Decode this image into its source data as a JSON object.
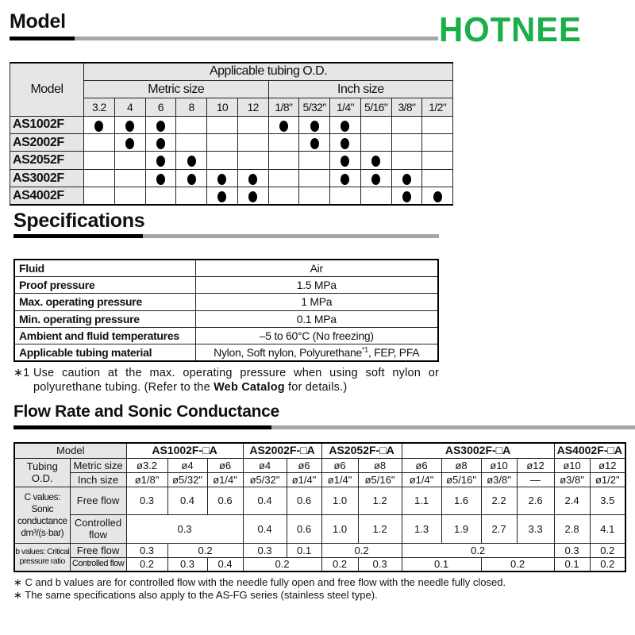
{
  "model_section": {
    "title": "Model"
  },
  "logo": {
    "text": "HOTNEE",
    "color": "#1aaf48"
  },
  "model_table": {
    "header_model": "Model",
    "header_applicable": "Applicable tubing O.D.",
    "header_metric": "Metric size",
    "header_inch": "Inch size",
    "metric_sizes": [
      "3.2",
      "4",
      "6",
      "8",
      "10",
      "12"
    ],
    "inch_sizes": [
      "1/8\"",
      "5/32\"",
      "1/4\"",
      "5/16\"",
      "3/8\"",
      "1/2\""
    ],
    "rows": [
      {
        "model": "AS1002F",
        "metric": [
          1,
          1,
          1,
          0,
          0,
          0
        ],
        "inch": [
          1,
          1,
          1,
          0,
          0,
          0
        ]
      },
      {
        "model": "AS2002F",
        "metric": [
          0,
          1,
          1,
          0,
          0,
          0
        ],
        "inch": [
          0,
          1,
          1,
          0,
          0,
          0
        ]
      },
      {
        "model": "AS2052F",
        "metric": [
          0,
          0,
          1,
          1,
          0,
          0
        ],
        "inch": [
          0,
          0,
          1,
          1,
          0,
          0
        ]
      },
      {
        "model": "AS3002F",
        "metric": [
          0,
          0,
          1,
          1,
          1,
          1
        ],
        "inch": [
          0,
          0,
          1,
          1,
          1,
          0
        ]
      },
      {
        "model": "AS4002F",
        "metric": [
          0,
          0,
          0,
          0,
          1,
          1
        ],
        "inch": [
          0,
          0,
          0,
          0,
          1,
          1
        ]
      }
    ]
  },
  "spec_section": {
    "title": "Specifications"
  },
  "spec_table": [
    {
      "k": "Fluid",
      "v": "Air"
    },
    {
      "k": "Proof pressure",
      "v": "1.5 MPa"
    },
    {
      "k": "Max. operating pressure",
      "v": "1 MPa"
    },
    {
      "k": "Min. operating pressure",
      "v": "0.1 MPa"
    },
    {
      "k": "Ambient and fluid temperatures",
      "v": "–5 to 60°C (No freezing)"
    },
    {
      "k": "Applicable tubing material",
      "v": "Nylon, Soft nylon, Polyurethane",
      "sup": "*1",
      "v2": ", FEP, PFA"
    }
  ],
  "spec_note": {
    "mark": "∗1",
    "text1": "Use caution at the max. operating pressure when using soft nylon or polyurethane tubing. (Refer to the ",
    "bold": "Web Catalog",
    "text2": " for details.)"
  },
  "flow_section": {
    "title": "Flow Rate and Sonic Conductance"
  },
  "flow_table": {
    "model_label": "Model",
    "models": [
      {
        "name": "AS1002F-□A",
        "span": 3
      },
      {
        "name": "AS2002F-□A",
        "span": 2
      },
      {
        "name": "AS2052F-□A",
        "span": 2
      },
      {
        "name": "AS3002F-□A",
        "span": 4
      },
      {
        "name": "AS4002F-□A",
        "span": 2
      }
    ],
    "tubing_label": "Tubing O.D.",
    "metric_label": "Metric size",
    "inch_label": "Inch size",
    "metric": [
      "ø3.2",
      "ø4",
      "ø6",
      "ø4",
      "ø6",
      "ø6",
      "ø8",
      "ø6",
      "ø8",
      "ø10",
      "ø12",
      "ø10",
      "ø12"
    ],
    "inch": [
      "ø1/8\"",
      "ø5/32\"",
      "ø1/4\"",
      "ø5/32\"",
      "ø1/4\"",
      "ø1/4\"",
      "ø5/16\"",
      "ø1/4\"",
      "ø5/16\"",
      "ø3/8\"",
      "—",
      "ø3/8\"",
      "ø1/2\""
    ],
    "c_label": "C values: Sonic conductance dm³/(s·bar)",
    "b_label": "b values: Critical pressure ratio",
    "free_label": "Free flow",
    "controlled_label": "Controlled flow",
    "c_free": [
      {
        "v": "0.3"
      },
      {
        "v": "0.4"
      },
      {
        "v": "0.6"
      },
      {
        "v": "0.4"
      },
      {
        "v": "0.6"
      },
      {
        "v": "1.0"
      },
      {
        "v": "1.2"
      },
      {
        "v": "1.1"
      },
      {
        "v": "1.6"
      },
      {
        "v": "2.2"
      },
      {
        "v": "2.6"
      },
      {
        "v": "2.4"
      },
      {
        "v": "3.5"
      }
    ],
    "c_controlled": [
      {
        "v": "0.3",
        "span": 3
      },
      {
        "v": "0.4"
      },
      {
        "v": "0.6"
      },
      {
        "v": "1.0"
      },
      {
        "v": "1.2"
      },
      {
        "v": "1.3"
      },
      {
        "v": "1.9"
      },
      {
        "v": "2.7"
      },
      {
        "v": "3.3"
      },
      {
        "v": "2.8"
      },
      {
        "v": "4.1"
      }
    ],
    "b_free": [
      {
        "v": "0.3"
      },
      {
        "v": "0.2",
        "span": 2
      },
      {
        "v": "0.3"
      },
      {
        "v": "0.1"
      },
      {
        "v": "0.2",
        "span": 2
      },
      {
        "v": "0.2",
        "span": 4
      },
      {
        "v": "0.3"
      },
      {
        "v": "0.2"
      }
    ],
    "b_controlled": [
      {
        "v": "0.2"
      },
      {
        "v": "0.3"
      },
      {
        "v": "0.4"
      },
      {
        "v": "0.2",
        "span": 2
      },
      {
        "v": "0.2"
      },
      {
        "v": "0.3"
      },
      {
        "v": "0.1",
        "span": 2
      },
      {
        "v": "0.2",
        "span": 2
      },
      {
        "v": "0.1"
      },
      {
        "v": "0.2"
      }
    ]
  },
  "flow_notes": [
    "∗  C and b values are for controlled flow with the needle fully open and free flow with the needle fully closed.",
    "∗  The same specifications also apply to the AS-FG series (stainless steel type)."
  ]
}
